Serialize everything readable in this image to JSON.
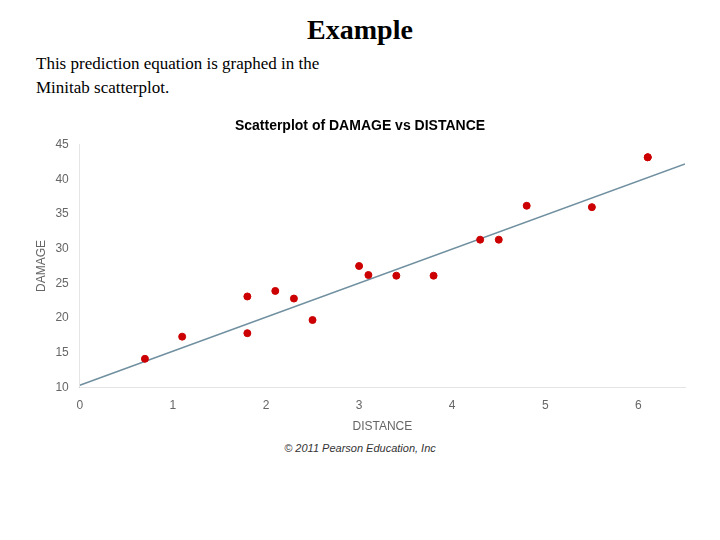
{
  "title": "Example",
  "subtitle": "This prediction equation is graphed in the\nMinitab scatterplot.",
  "chart_data": {
    "type": "scatter",
    "title": "Scatterplot of DAMAGE vs DISTANCE",
    "xlabel": "DISTANCE",
    "ylabel": "DAMAGE",
    "xlim": [
      0,
      6.5
    ],
    "ylim": [
      10,
      45
    ],
    "xticks": [
      0,
      1,
      2,
      3,
      4,
      5,
      6
    ],
    "yticks": [
      10,
      15,
      20,
      25,
      30,
      35,
      40,
      45
    ],
    "grid": false,
    "series": [
      {
        "type": "scatter",
        "color": "#cc0000",
        "marker": "circle",
        "x": [
          0.7,
          1.1,
          1.8,
          1.8,
          2.1,
          2.3,
          2.5,
          3.0,
          3.1,
          3.4,
          3.8,
          4.3,
          4.5,
          4.8,
          5.5,
          6.1,
          6.1
        ],
        "values": [
          14.1,
          17.3,
          17.8,
          23.1,
          23.9,
          22.8,
          19.7,
          27.5,
          26.2,
          26.1,
          26.1,
          31.3,
          31.3,
          36.2,
          36.0,
          43.2,
          43.2
        ]
      },
      {
        "type": "line",
        "color": "#7090a0",
        "line_style": "solid",
        "x": [
          0,
          6.5
        ],
        "values": [
          10.278,
          42.2515
        ]
      }
    ],
    "annotations": [
      "© 2011 Pearson Education, Inc"
    ]
  }
}
